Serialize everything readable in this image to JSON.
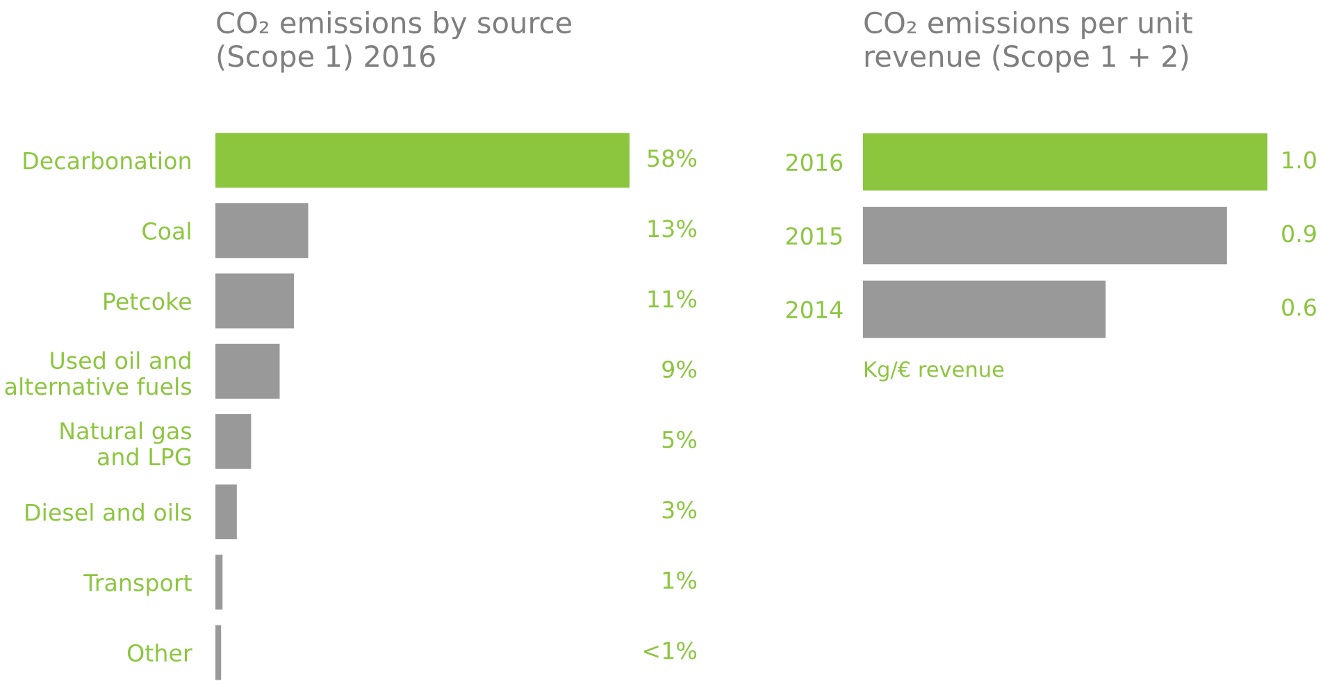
{
  "chart_data": [
    {
      "type": "bar",
      "orientation": "horizontal",
      "title": "CO₂ emissions by source\n(Scope 1) 2016",
      "categories": [
        "Decarbonation",
        "Coal",
        "Petcoke",
        "Used oil and\nalternative fuels",
        "Natural gas\nand LPG",
        "Diesel and oils",
        "Transport",
        "Other"
      ],
      "values": [
        58,
        13,
        11,
        9,
        5,
        3,
        1,
        0.8
      ],
      "value_labels": [
        "58%",
        "13%",
        "11%",
        "9%",
        "5%",
        "3%",
        "1%",
        "<1%"
      ],
      "colors": [
        "#8cc63f",
        "#999999",
        "#999999",
        "#999999",
        "#999999",
        "#999999",
        "#999999",
        "#999999"
      ],
      "grid": false,
      "legend": false
    },
    {
      "type": "bar",
      "orientation": "horizontal",
      "title": "CO₂ emissions per unit\nrevenue (Scope 1 + 2)",
      "categories": [
        "2016",
        "2015",
        "2014"
      ],
      "values": [
        1.0,
        0.9,
        0.6
      ],
      "value_labels": [
        "1.0",
        "0.9",
        "0.6"
      ],
      "colors": [
        "#8cc63f",
        "#999999",
        "#999999"
      ],
      "annotations": [
        "Kg/€ revenue"
      ],
      "grid": false,
      "legend": false
    }
  ]
}
